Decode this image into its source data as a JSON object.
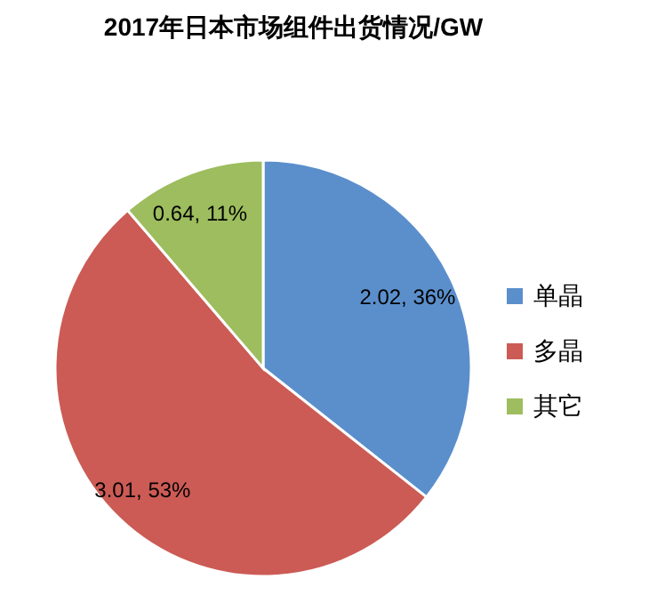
{
  "chart_data": {
    "type": "pie",
    "title": "2017年日本市场组件出货情况/GW",
    "categories": [
      "单晶",
      "多晶",
      "其它"
    ],
    "values": [
      2.02,
      3.01,
      0.64
    ],
    "value_labels": [
      "2.02, 36%",
      "3.01, 53%",
      "0.64, 11%"
    ],
    "colors": [
      "#5b8fcc",
      "#cc5b55",
      "#9dbd5e"
    ],
    "legend": "right"
  }
}
